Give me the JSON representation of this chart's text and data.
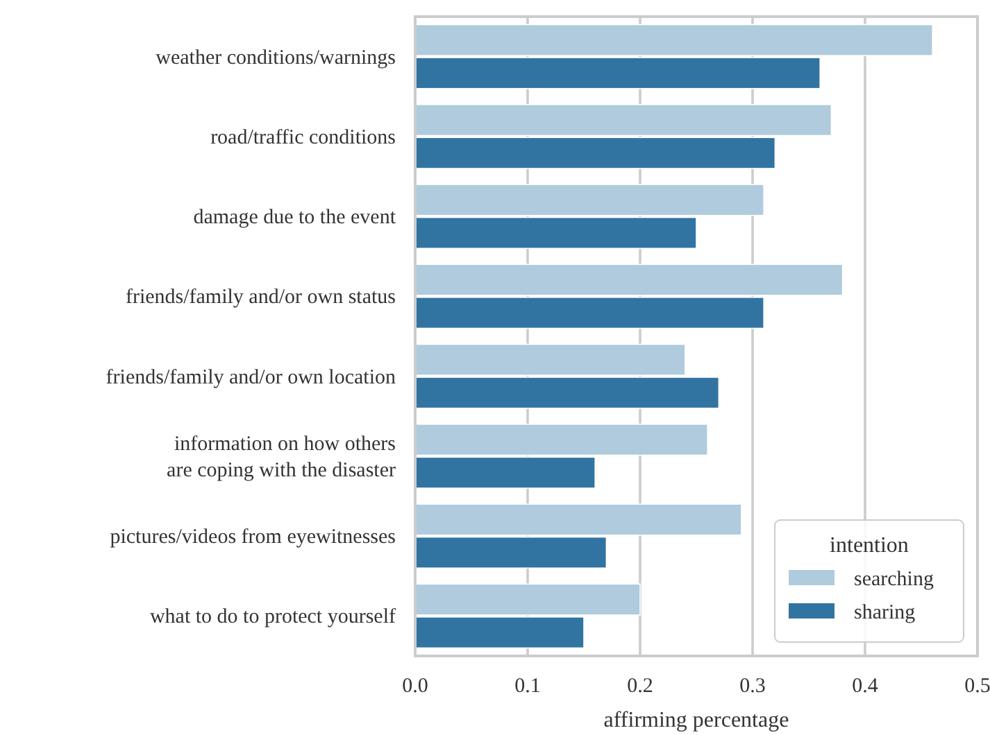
{
  "chart_data": {
    "type": "bar",
    "orientation": "horizontal",
    "xlabel": "affirming percentage",
    "legend_title": "intention",
    "legend": "bottom right",
    "grid": "x",
    "categories": [
      "weather conditions/warnings",
      "road/traffic conditions",
      "damage due to the event",
      "friends/family and/or own status",
      "friends/family and/or own location",
      "information on how others\nare coping with the disaster",
      "pictures/videos from eyewitnesses",
      "what to do to protect yourself"
    ],
    "xlim": [
      0,
      0.5
    ],
    "xticks": [
      {
        "value": 0,
        "label": "0.0"
      },
      0.1,
      0.2,
      0.3,
      0.4,
      0.5
    ],
    "series": [
      {
        "name": "searching",
        "color": "#afcbdd",
        "values": [
          0.46,
          0.37,
          0.31,
          0.38,
          0.24,
          0.26,
          0.29,
          0.2
        ]
      },
      {
        "name": "sharing",
        "color": "#3274a1",
        "values": [
          0.36,
          0.32,
          0.25,
          0.31,
          0.27,
          0.16,
          0.17,
          0.15
        ]
      }
    ]
  }
}
